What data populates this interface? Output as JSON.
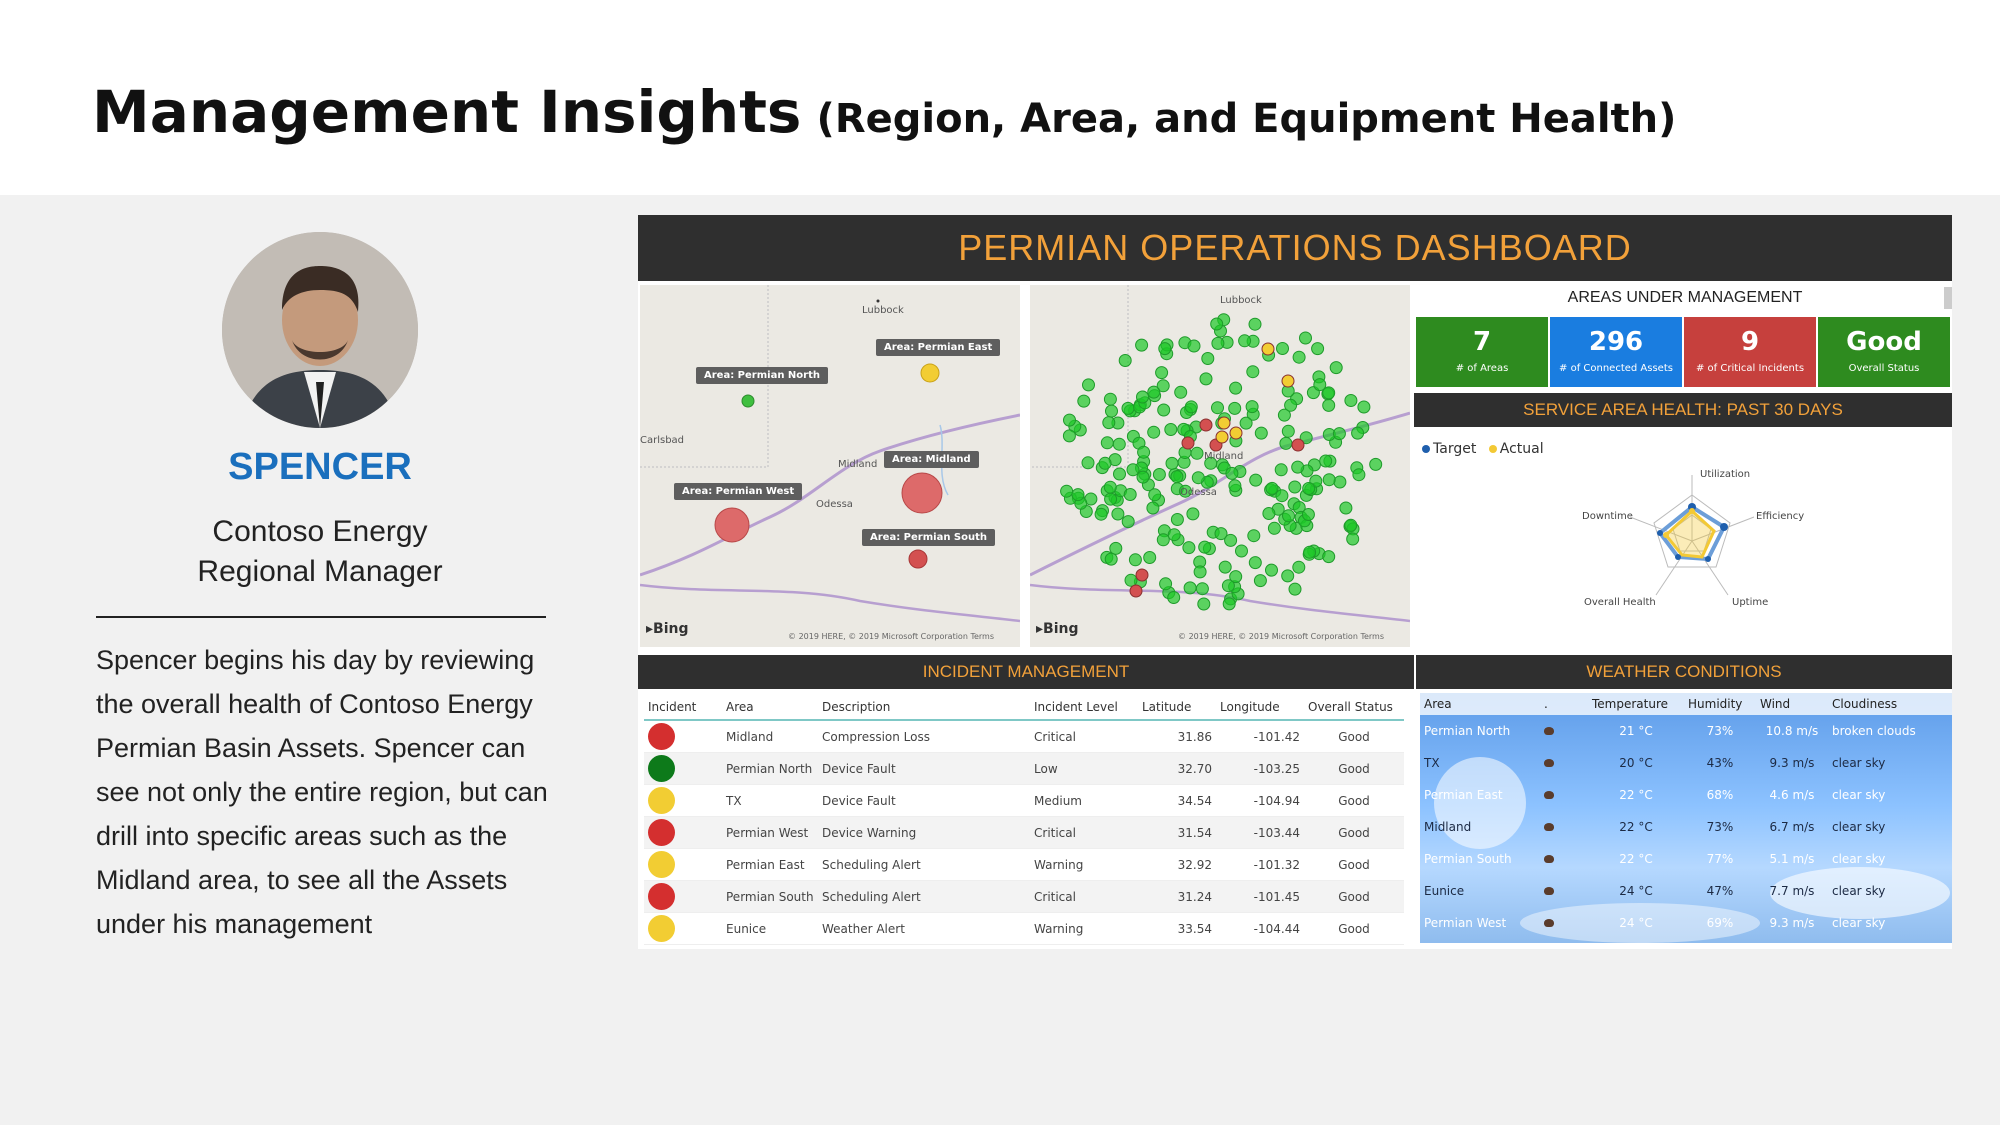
{
  "slide": {
    "title": "Management Insights",
    "subtitle": "(Region, Area, and Equipment Health)"
  },
  "persona": {
    "name": "SPENCER",
    "company": "Contoso Energy",
    "role": "Regional Manager",
    "description": "Spencer begins his day by reviewing the overall health of Contoso Energy Permian Basin Assets. Spencer can see not only the entire region, but can drill into specific areas such as the Midland area, to see all the Assets under his management"
  },
  "dashboard": {
    "title": "PERMIAN OPERATIONS DASHBOARD",
    "map1": {
      "labels": [
        "Area: Permian North",
        "Area: Permian East",
        "Area: Midland",
        "Area: Permian West",
        "Area: Permian South"
      ],
      "places": [
        "Lubbock",
        "Carlsbad",
        "Midland",
        "Odessa"
      ],
      "provider": "Bing",
      "copyright": "© 2019 HERE, © 2019 Microsoft Corporation Terms"
    },
    "map2": {
      "places": [
        "Lubbock",
        "Midland",
        "Odessa"
      ],
      "provider": "Bing",
      "copyright": "© 2019 HERE, © 2019 Microsoft Corporation Terms"
    },
    "areas_under_management": {
      "title": "AREAS UNDER MANAGEMENT",
      "kpis": [
        {
          "value": "7",
          "label": "# of Areas",
          "color": "#2e8b1f"
        },
        {
          "value": "296",
          "label": "# of Connected Assets",
          "color": "#1a7de0"
        },
        {
          "value": "9",
          "label": "# of Critical Incidents",
          "color": "#c6403d"
        },
        {
          "value": "Good",
          "label": "Overall Status",
          "color": "#2e8b1f"
        }
      ]
    },
    "service_health": {
      "title": "SERVICE AREA HEALTH: PAST 30 DAYS",
      "legend": [
        {
          "name": "Target",
          "color": "#1f5fad"
        },
        {
          "name": "Actual",
          "color": "#f3c935"
        }
      ],
      "axes": [
        "Utilization",
        "Efficiency",
        "Uptime",
        "Overall Health",
        "Downtime"
      ]
    },
    "incident": {
      "title": "INCIDENT MANAGEMENT",
      "headers": [
        "Incident",
        "Area",
        "Description",
        "Incident Level",
        "Latitude",
        "Longitude",
        "Overall Status"
      ],
      "rows": [
        {
          "color": "#d42f2f",
          "area": "Midland",
          "desc": "Compression Loss",
          "level": "Critical",
          "lat": "31.86",
          "lon": "-101.42",
          "status": "Good"
        },
        {
          "color": "#0d7a1a",
          "area": "Permian North",
          "desc": "Device Fault",
          "level": "Low",
          "lat": "32.70",
          "lon": "-103.25",
          "status": "Good"
        },
        {
          "color": "#f2cd33",
          "area": "TX",
          "desc": "Device Fault",
          "level": "Medium",
          "lat": "34.54",
          "lon": "-104.94",
          "status": "Good"
        },
        {
          "color": "#d42f2f",
          "area": "Permian West",
          "desc": "Device Warning",
          "level": "Critical",
          "lat": "31.54",
          "lon": "-103.44",
          "status": "Good"
        },
        {
          "color": "#f2cd33",
          "area": "Permian East",
          "desc": "Scheduling Alert",
          "level": "Warning",
          "lat": "32.92",
          "lon": "-101.32",
          "status": "Good"
        },
        {
          "color": "#d42f2f",
          "area": "Permian South",
          "desc": "Scheduling Alert",
          "level": "Critical",
          "lat": "31.24",
          "lon": "-101.45",
          "status": "Good"
        },
        {
          "color": "#f2cd33",
          "area": "Eunice",
          "desc": "Weather Alert",
          "level": "Warning",
          "lat": "33.54",
          "lon": "-104.44",
          "status": "Good"
        }
      ]
    },
    "weather": {
      "title": "WEATHER CONDITIONS",
      "headers": [
        "Area",
        ".",
        "Temperature",
        "Humidity",
        "Wind",
        "Cloudiness"
      ],
      "rows": [
        {
          "area": "Permian North",
          "temp": "21 °C",
          "hum": "73%",
          "wind": "10.8 m/s",
          "cloud": "broken clouds"
        },
        {
          "area": "TX",
          "temp": "20 °C",
          "hum": "43%",
          "wind": "9.3 m/s",
          "cloud": "clear sky"
        },
        {
          "area": "Permian East",
          "temp": "22 °C",
          "hum": "68%",
          "wind": "4.6 m/s",
          "cloud": "clear sky"
        },
        {
          "area": "Midland",
          "temp": "22 °C",
          "hum": "73%",
          "wind": "6.7 m/s",
          "cloud": "clear sky"
        },
        {
          "area": "Permian South",
          "temp": "22 °C",
          "hum": "77%",
          "wind": "5.1 m/s",
          "cloud": "clear sky"
        },
        {
          "area": "Eunice",
          "temp": "24 °C",
          "hum": "47%",
          "wind": "7.7 m/s",
          "cloud": "clear sky"
        },
        {
          "area": "Permian West",
          "temp": "24 °C",
          "hum": "69%",
          "wind": "9.3 m/s",
          "cloud": "clear sky"
        }
      ]
    }
  }
}
